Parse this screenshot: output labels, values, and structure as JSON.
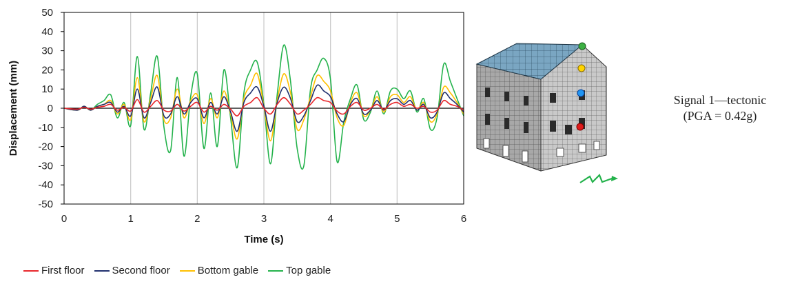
{
  "chart_data": {
    "type": "line",
    "xlabel": "Time (s)",
    "ylabel": "Displacement (mm)",
    "xlim": [
      0,
      6
    ],
    "ylim": [
      -50,
      50
    ],
    "xticks": [
      "0",
      "1",
      "2",
      "3",
      "4",
      "5",
      "6"
    ],
    "yticks": [
      "50",
      "40",
      "30",
      "20",
      "10",
      "0",
      "-10",
      "-20",
      "-30",
      "-40",
      "-50"
    ],
    "grid": "vertical",
    "legend_position": "bottom",
    "x": [
      0,
      0.2,
      0.3,
      0.4,
      0.5,
      0.6,
      0.7,
      0.8,
      0.9,
      1.0,
      1.1,
      1.2,
      1.3,
      1.4,
      1.5,
      1.6,
      1.7,
      1.8,
      1.9,
      2.0,
      2.1,
      2.2,
      2.3,
      2.4,
      2.5,
      2.6,
      2.7,
      2.8,
      2.9,
      3.0,
      3.1,
      3.2,
      3.3,
      3.4,
      3.5,
      3.6,
      3.7,
      3.8,
      3.9,
      4.0,
      4.1,
      4.2,
      4.3,
      4.4,
      4.5,
      4.6,
      4.7,
      4.8,
      4.9,
      5.0,
      5.1,
      5.2,
      5.3,
      5.4,
      5.5,
      5.6,
      5.7,
      5.8,
      5.9,
      6.0
    ],
    "series": [
      {
        "name": "First floor",
        "color": "#e8262a",
        "values": [
          0,
          -0.5,
          0.5,
          -0.5,
          0.5,
          1,
          2,
          -1,
          0.5,
          -1.5,
          4.5,
          -2,
          1,
          4,
          -1,
          -1.5,
          2,
          -1.5,
          1,
          3,
          -2,
          1,
          -1,
          2,
          -0.5,
          -4,
          1,
          3,
          5.5,
          0,
          -3,
          2,
          5.5,
          2,
          -3,
          -1,
          2,
          5.5,
          4,
          3,
          -1.5,
          -3,
          1,
          3,
          -1,
          0,
          2,
          -0.5,
          2,
          3,
          1,
          2,
          0,
          1,
          -2,
          -1,
          4,
          2,
          1,
          -1
        ]
      },
      {
        "name": "Second floor",
        "color": "#1f2f6e",
        "values": [
          0,
          -1,
          1,
          -1,
          1,
          2,
          3,
          -2,
          1,
          -4,
          10,
          -5,
          3,
          11,
          -4,
          -3,
          6,
          -3,
          3,
          5,
          -5,
          3,
          -3,
          6,
          -2,
          -12,
          3,
          8,
          11,
          1,
          -12,
          3,
          11,
          5,
          -7,
          -4,
          4,
          12,
          9,
          6,
          -3,
          -7,
          2,
          5,
          -3,
          -1,
          4,
          -1,
          4,
          5,
          2,
          4,
          -1,
          2,
          -5,
          -2,
          8,
          5,
          2,
          -2
        ]
      },
      {
        "name": "Bottom gable",
        "color": "#ffc000",
        "values": [
          0,
          -1,
          1,
          -1,
          1,
          2,
          4,
          -3,
          2,
          -6,
          16,
          -7,
          5,
          17,
          -6,
          -5,
          10,
          -5,
          4,
          7,
          -8,
          5,
          -5,
          9,
          -3,
          -16,
          5,
          12,
          18,
          1,
          -17,
          4,
          18,
          8,
          -11,
          -6,
          6,
          17,
          14,
          9,
          -5,
          -9,
          3,
          8,
          -4,
          -1,
          6,
          -2,
          6,
          7,
          3,
          6,
          -1,
          3,
          -7,
          -3,
          11,
          8,
          3,
          -3
        ]
      },
      {
        "name": "Top gable",
        "color": "#23b24b",
        "values": [
          0,
          -1,
          1,
          -1,
          2,
          4,
          7,
          -5,
          3,
          -9,
          27,
          -11,
          8,
          27,
          -10,
          -22,
          16,
          -25,
          6,
          18,
          -21,
          8,
          -20,
          20,
          -5,
          -31,
          8,
          20,
          24,
          2,
          -29,
          7,
          33,
          14,
          -21,
          -30,
          10,
          20,
          26,
          15,
          -28,
          -7,
          5,
          12,
          -6,
          -2,
          9,
          -3,
          9,
          10,
          5,
          9,
          -2,
          5,
          -11,
          -5,
          23,
          14,
          5,
          -4
        ]
      }
    ]
  },
  "side_label": {
    "line1": "Signal 1—tectonic",
    "line2": "(PGA = 0.42g)"
  },
  "markers": [
    {
      "name": "top-gable-marker",
      "color": "#3cb043"
    },
    {
      "name": "bottom-gable-marker",
      "color": "#ffd400"
    },
    {
      "name": "second-floor-marker",
      "color": "#2196f3"
    },
    {
      "name": "first-floor-marker",
      "color": "#e01b1b"
    }
  ]
}
